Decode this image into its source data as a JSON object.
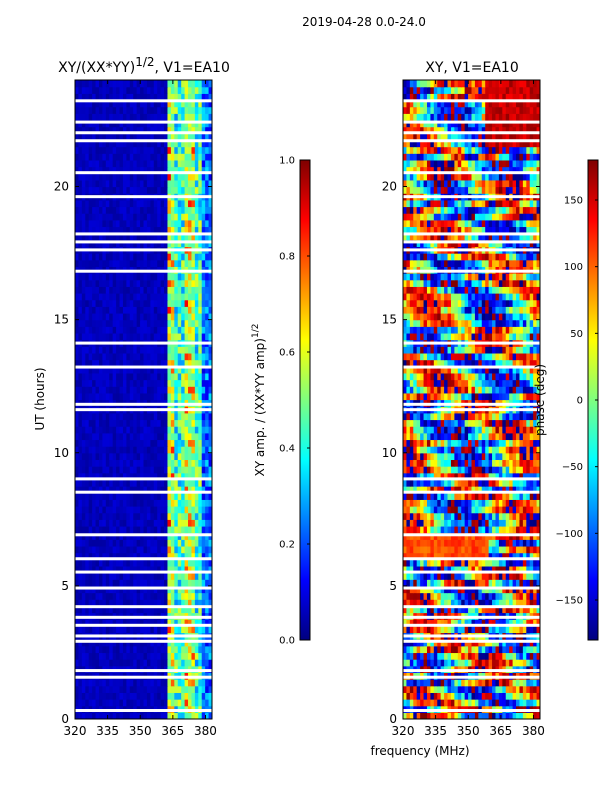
{
  "suptitle": "2019-04-28 0.0-24.0",
  "colors": {
    "jet": [
      "#00007f",
      "#0000ff",
      "#007fff",
      "#00ffff",
      "#7fff7f",
      "#ffff00",
      "#ff7f00",
      "#ff0000",
      "#7f0000"
    ]
  },
  "chart_data": [
    {
      "type": "heatmap",
      "title": "XY/(XX*YY)$^{1/2}$, V1=EA10",
      "title_main": "XY/(XX*YY)",
      "title_sup": "1/2",
      "title_tail": ", V1=EA10",
      "xlabel": "",
      "ylabel": "UT (hours)",
      "x_range": [
        320,
        383
      ],
      "y_range": [
        0,
        24
      ],
      "x_ticks": [
        "320",
        "335",
        "350",
        "365",
        "380"
      ],
      "x_tick_values": [
        320,
        335,
        350,
        365,
        380
      ],
      "y_ticks": [
        "0",
        "5",
        "10",
        "15",
        "20"
      ],
      "y_tick_values": [
        0,
        5,
        10,
        15,
        20
      ],
      "colorbar": {
        "label": "XY amp. / (XX*YY amp)$^{1/2}$",
        "label_main": "XY amp. / (XX*YY amp)",
        "label_sup": "1/2",
        "range": [
          0.0,
          1.0
        ],
        "ticks": [
          "0.0",
          "0.2",
          "0.4",
          "0.6",
          "0.8",
          "1.0"
        ],
        "tick_values": [
          0.0,
          0.2,
          0.4,
          0.6,
          0.8,
          1.0
        ]
      },
      "gap_rows_hours": [
        0.3,
        1.55,
        1.8,
        2.9,
        3.1,
        3.5,
        3.8,
        4.2,
        4.9,
        5.5,
        6.0,
        6.9,
        8.5,
        9.0,
        11.6,
        11.8,
        13.2,
        14.1,
        16.8,
        17.6,
        17.9,
        18.2,
        19.6,
        20.5,
        21.7,
        22.0,
        22.4,
        23.2
      ]
    },
    {
      "type": "heatmap",
      "title": "XY, V1=EA10",
      "xlabel": "frequency (MHz)",
      "ylabel": "",
      "x_range": [
        320,
        383
      ],
      "y_range": [
        0,
        24
      ],
      "x_ticks": [
        "320",
        "335",
        "350",
        "365",
        "380"
      ],
      "x_tick_values": [
        320,
        335,
        350,
        365,
        380
      ],
      "y_ticks": [
        "0",
        "5",
        "10",
        "15",
        "20"
      ],
      "y_tick_values": [
        0,
        5,
        10,
        15,
        20
      ],
      "colorbar": {
        "label": "phase (deg)",
        "range": [
          -180,
          180
        ],
        "ticks": [
          "−150",
          "−100",
          "−50",
          "0",
          "50",
          "100",
          "150"
        ],
        "tick_values": [
          -150,
          -100,
          -50,
          0,
          50,
          100,
          150
        ]
      },
      "gap_rows_hours": [
        0.3,
        1.55,
        1.8,
        2.9,
        3.1,
        3.5,
        3.8,
        4.2,
        4.9,
        5.5,
        6.0,
        6.9,
        8.5,
        9.0,
        11.6,
        11.8,
        13.2,
        14.1,
        16.8,
        17.6,
        17.9,
        18.2,
        19.6,
        20.5,
        21.7,
        22.0,
        22.4,
        23.2
      ]
    }
  ]
}
